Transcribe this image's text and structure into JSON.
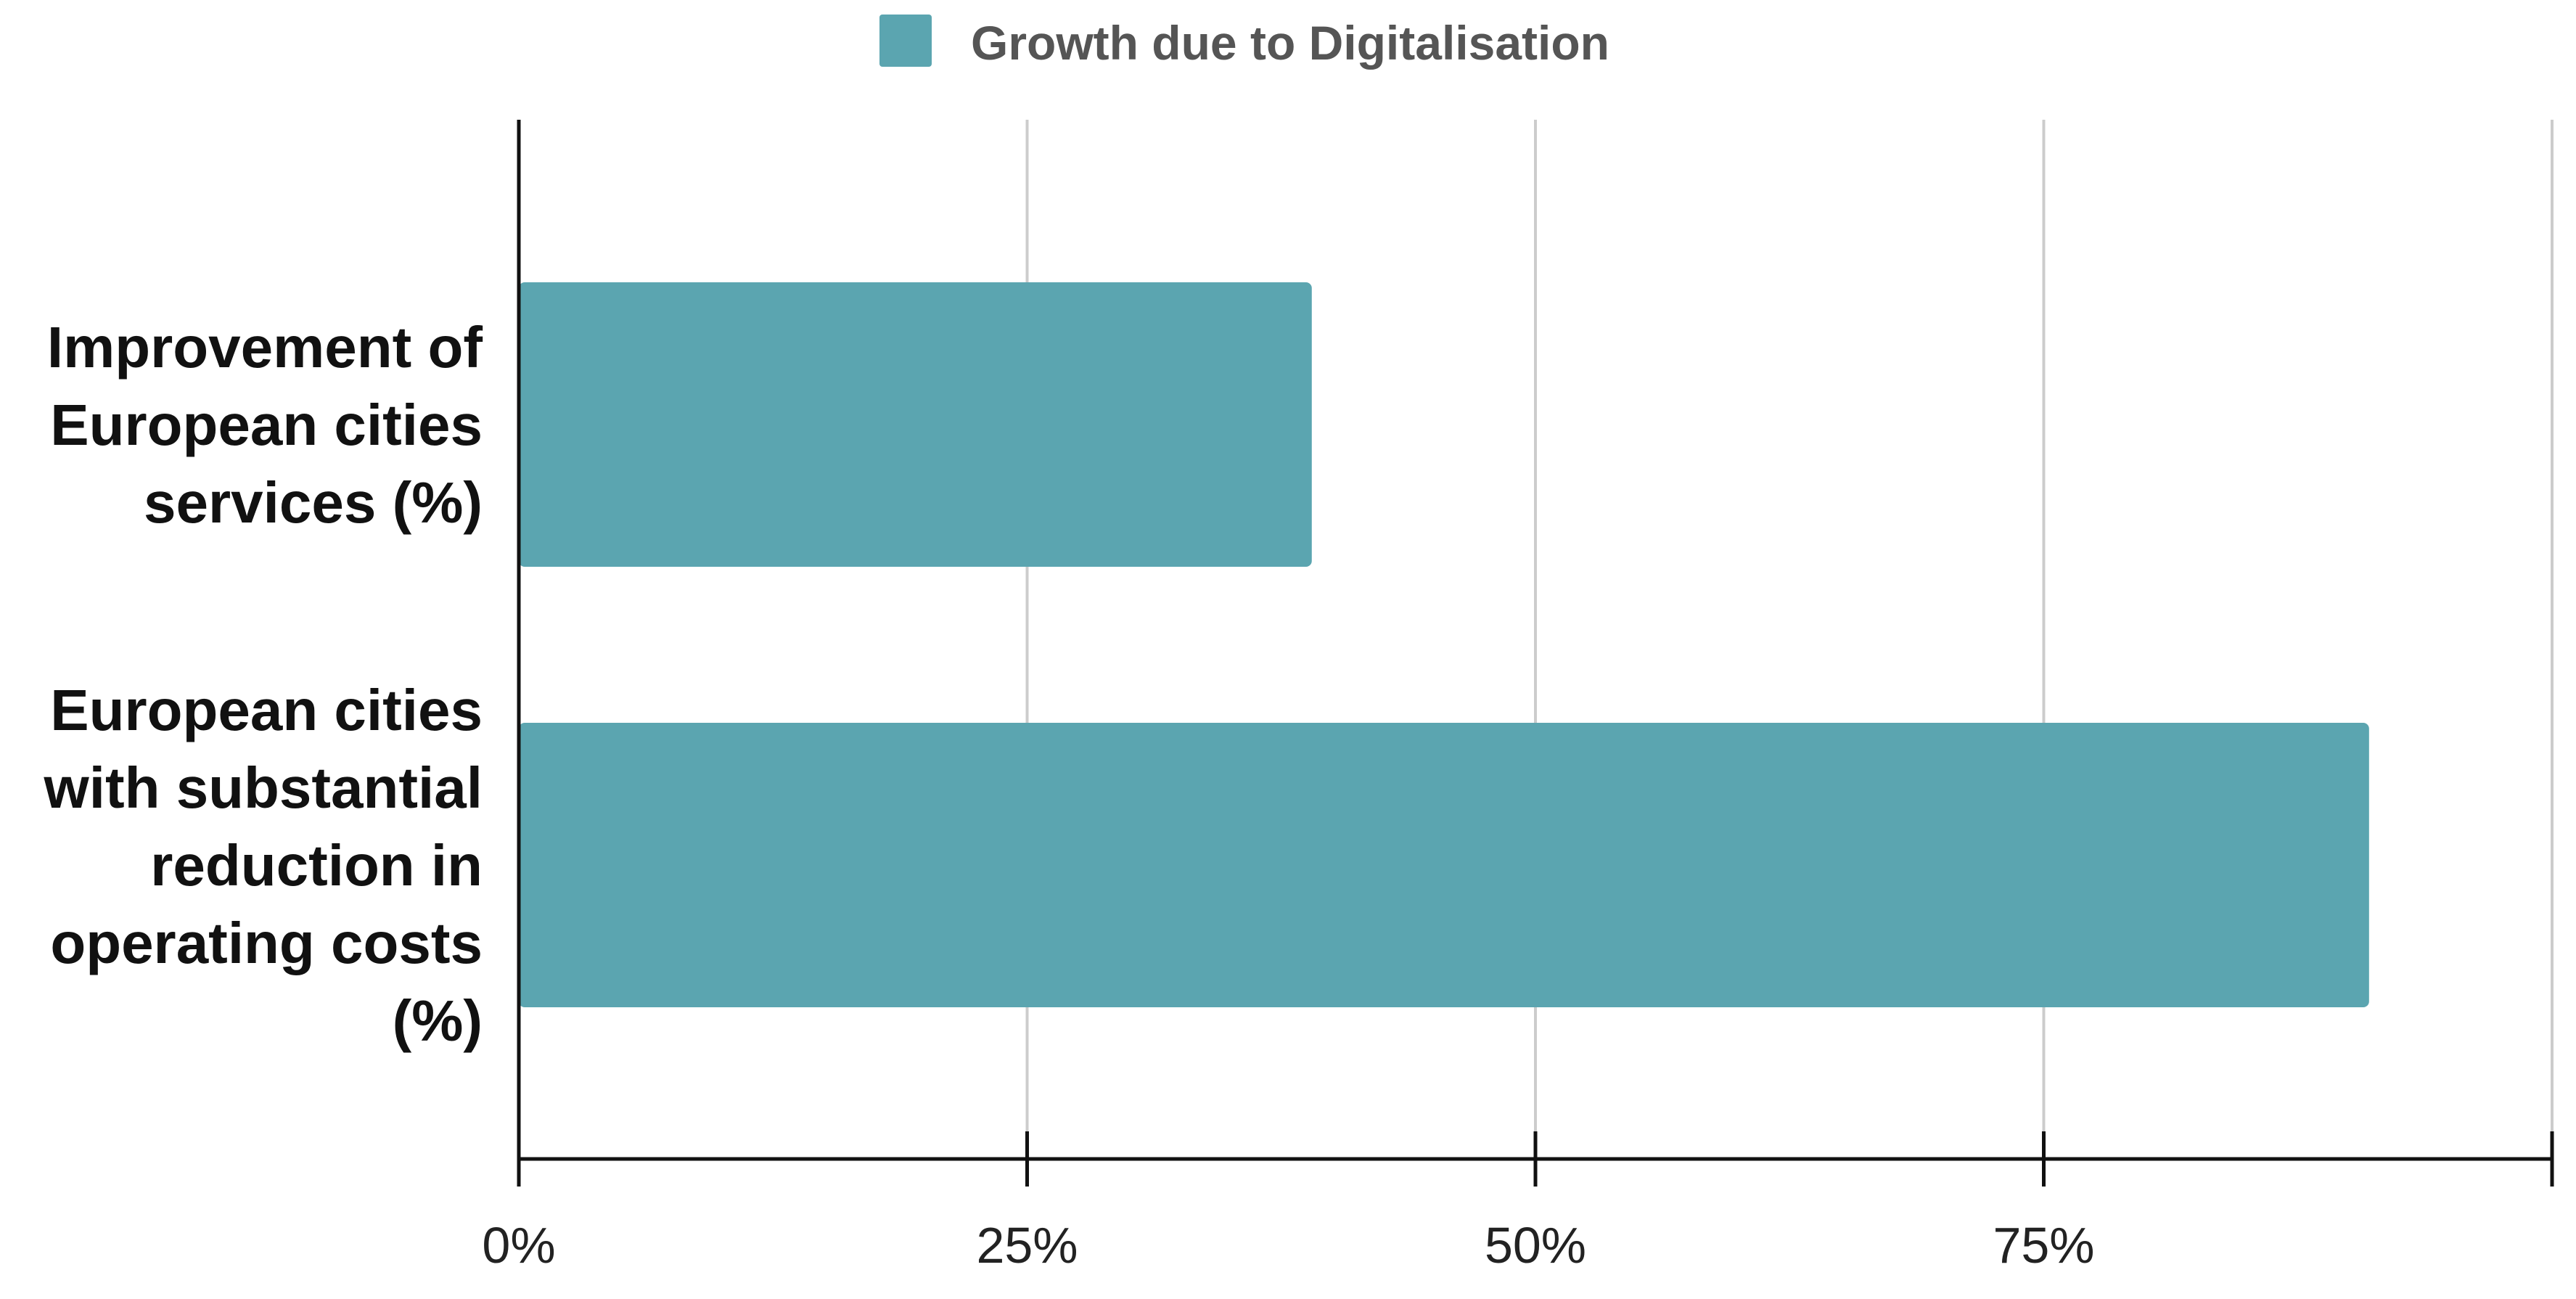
{
  "chart_data": {
    "type": "bar",
    "orientation": "horizontal",
    "categories": [
      "Improvement of European cities services (%)",
      "European cities with substantial reduction in operating costs (%)"
    ],
    "category_lines": [
      [
        "Improvement of",
        "European cities",
        "services (%)"
      ],
      [
        "European cities",
        "with substantial",
        "reduction in",
        "operating costs",
        "(%)"
      ]
    ],
    "series": [
      {
        "name": "Growth due to Digitalisation",
        "color": "#5ba5b0",
        "values": [
          0.39,
          0.91
        ]
      }
    ],
    "x_ticks": [
      {
        "value": 0,
        "label": "0%"
      },
      {
        "value": 0.25,
        "label": "25%"
      },
      {
        "value": 0.5,
        "label": "50%"
      },
      {
        "value": 0.75,
        "label": "75%"
      },
      {
        "value": 1.0,
        "label": ""
      }
    ],
    "xlim": [
      0,
      1.0
    ],
    "grid": true,
    "legend_position": "top-center",
    "title": "",
    "xlabel": "",
    "ylabel": ""
  }
}
